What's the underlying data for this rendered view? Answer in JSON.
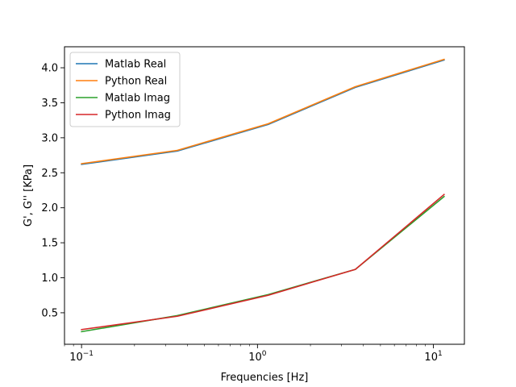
{
  "chart_data": {
    "type": "line",
    "xlabel": "Frequencies [Hz]",
    "ylabel": "G', G'' [KPa]",
    "xscale": "log",
    "xlim": [
      0.08,
      15
    ],
    "ylim": [
      0.05,
      4.3
    ],
    "grid": false,
    "legend_position": "top-left",
    "x_ticks": [
      {
        "value": 0.1,
        "base": "10",
        "exp": "−1"
      },
      {
        "value": 1,
        "base": "10",
        "exp": "0"
      },
      {
        "value": 10,
        "base": "10",
        "exp": "1"
      }
    ],
    "y_ticks": [
      {
        "value": 0.5,
        "label": "0.5"
      },
      {
        "value": 1.0,
        "label": "1.0"
      },
      {
        "value": 1.5,
        "label": "1.5"
      },
      {
        "value": 2.0,
        "label": "2.0"
      },
      {
        "value": 2.5,
        "label": "2.5"
      },
      {
        "value": 3.0,
        "label": "3.0"
      },
      {
        "value": 3.5,
        "label": "3.5"
      },
      {
        "value": 4.0,
        "label": "4.0"
      }
    ],
    "x": [
      0.1,
      0.35,
      1.15,
      3.6,
      11.5
    ],
    "series": [
      {
        "name": "Matlab Real",
        "color": "#1f77b4",
        "values": [
          2.62,
          2.81,
          3.19,
          3.72,
          4.11
        ]
      },
      {
        "name": "Python Real",
        "color": "#ff7f0e",
        "values": [
          2.63,
          2.82,
          3.2,
          3.73,
          4.12
        ]
      },
      {
        "name": "Matlab Imag",
        "color": "#2ca02c",
        "values": [
          0.23,
          0.46,
          0.76,
          1.12,
          2.16
        ]
      },
      {
        "name": "Python Imag",
        "color": "#d62728",
        "values": [
          0.26,
          0.45,
          0.75,
          1.12,
          2.19
        ]
      }
    ]
  }
}
